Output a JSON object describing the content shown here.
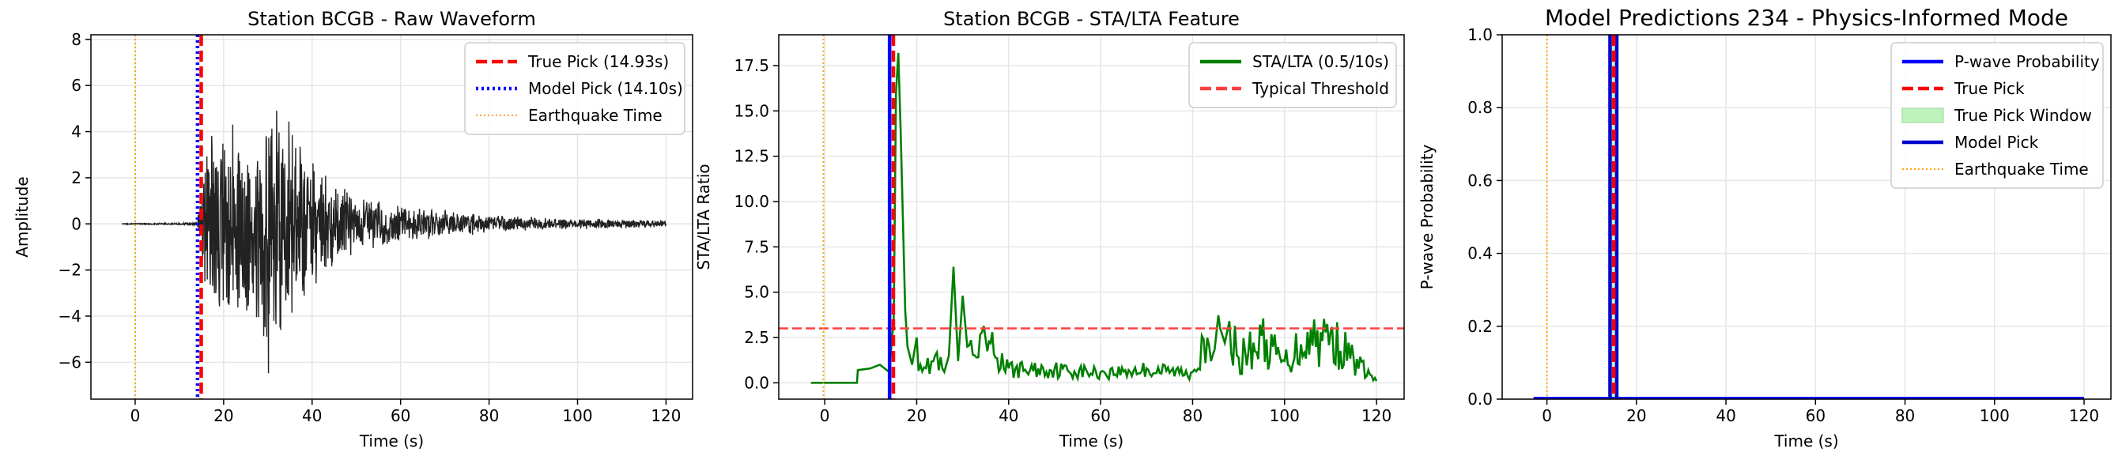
{
  "chart_data": [
    {
      "type": "line",
      "title": "Station BCGB - Raw Waveform",
      "xlabel": "Time (s)",
      "ylabel": "Amplitude",
      "xlim": [
        -10,
        126
      ],
      "ylim": [
        -7.6,
        8.2
      ],
      "xticks": [
        0,
        20,
        40,
        60,
        80,
        100,
        120
      ],
      "xtick_labels": [
        "0",
        "20",
        "40",
        "60",
        "80",
        "100",
        "120"
      ],
      "yticks": [
        -6,
        -4,
        -2,
        0,
        2,
        4,
        6,
        8
      ],
      "ytick_labels": [
        "−6",
        "−4",
        "−2",
        "0",
        "2",
        "4",
        "6",
        "8"
      ],
      "grid": true,
      "legend_position": "top-right",
      "legend": [
        {
          "label": "True Pick (14.93s)",
          "color": "#ff0000",
          "style": "dashed"
        },
        {
          "label": "Model Pick (14.10s)",
          "color": "#0000ff",
          "style": "dotted"
        },
        {
          "label": "Earthquake Time",
          "color": "#ffa500",
          "style": "dotted-thin"
        }
      ],
      "vlines": [
        {
          "x": 14.93,
          "color": "#ff0000",
          "style": "dashed"
        },
        {
          "x": 14.1,
          "color": "#0000ff",
          "style": "dotted"
        },
        {
          "x": 0,
          "color": "#ffa500",
          "style": "dotted-thin"
        }
      ],
      "series": [
        {
          "color": "#222222",
          "kind": "waveform",
          "x": [
            -3,
            14,
            15,
            16,
            17,
            18,
            20,
            22,
            24,
            26,
            28,
            30,
            32,
            34,
            35,
            36,
            40,
            45,
            50,
            60,
            70,
            80,
            90,
            100,
            110,
            120
          ],
          "envelope": [
            0.02,
            0.05,
            1.5,
            3.5,
            4.5,
            4.2,
            4.0,
            5.2,
            5.0,
            4.8,
            5.5,
            7.3,
            6.0,
            5.0,
            6.8,
            3.8,
            3.0,
            2.0,
            1.3,
            0.9,
            0.6,
            0.45,
            0.3,
            0.25,
            0.2,
            0.15
          ],
          "end_x": 120
        }
      ]
    },
    {
      "type": "line",
      "title": "Station BCGB - STA/LTA Feature",
      "xlabel": "Time (s)",
      "ylabel": "STA/LTA Ratio",
      "xlim": [
        -10,
        126
      ],
      "ylim": [
        -0.9,
        19.2
      ],
      "xticks": [
        0,
        20,
        40,
        60,
        80,
        100,
        120
      ],
      "xtick_labels": [
        "0",
        "20",
        "40",
        "60",
        "80",
        "100",
        "120"
      ],
      "yticks": [
        0,
        2.5,
        5,
        7.5,
        10,
        12.5,
        15,
        17.5
      ],
      "ytick_labels": [
        "0.0",
        "2.5",
        "5.0",
        "7.5",
        "10.0",
        "12.5",
        "15.0",
        "17.5"
      ],
      "grid": true,
      "legend_position": "top-right",
      "legend": [
        {
          "label": "STA/LTA (0.5/10s)",
          "color": "#008000",
          "style": "solid"
        },
        {
          "label": "Typical Threshold",
          "color": "#ff4040",
          "style": "dashed"
        }
      ],
      "hlines": [
        {
          "y": 3.0,
          "color": "#ff4040",
          "style": "dashed"
        }
      ],
      "vlines": [
        {
          "x": -0.3,
          "color": "#ffa500",
          "style": "dotted-thin"
        },
        {
          "x": 14.1,
          "color": "#0000ff",
          "style": "solid"
        },
        {
          "x": 14.93,
          "color": "#ff0000",
          "style": "dashed"
        }
      ],
      "series": [
        {
          "color": "#008000",
          "kind": "stalta",
          "x": [
            -3,
            7,
            7.2,
            10,
            11,
            12,
            13,
            14,
            15,
            15.5,
            16,
            16.5,
            17,
            17.5,
            18,
            19,
            20,
            22,
            24,
            26,
            27,
            28,
            29,
            30,
            31,
            33,
            35,
            40,
            50,
            60,
            70,
            80,
            82,
            84,
            86,
            87,
            88,
            90,
            95,
            100,
            105,
            110,
            115,
            120
          ],
          "y": [
            0,
            0,
            0.7,
            0.8,
            0.9,
            1.0,
            0.8,
            0.6,
            3.5,
            16.0,
            18.2,
            14.0,
            9.0,
            4.0,
            2.0,
            1.0,
            2.5,
            0.8,
            1.5,
            0.6,
            1.5,
            6.4,
            1.2,
            4.8,
            2.0,
            1.4,
            2.4,
            0.8,
            0.8,
            0.6,
            0.8,
            0.6,
            2.6,
            1.2,
            3.0,
            2.2,
            3.4,
            1.4,
            2.6,
            1.2,
            2.8,
            2.8,
            1.4,
            0.1
          ]
        }
      ]
    },
    {
      "type": "line",
      "title": "Model Predictions 234 - Physics-Informed Mode",
      "xlabel": "Time (s)",
      "ylabel": "P-wave Probability",
      "xlim": [
        -10,
        126
      ],
      "ylim": [
        0,
        1.0
      ],
      "xticks": [
        0,
        20,
        40,
        60,
        80,
        100,
        120
      ],
      "xtick_labels": [
        "0",
        "20",
        "40",
        "60",
        "80",
        "100",
        "120"
      ],
      "yticks": [
        0,
        0.2,
        0.4,
        0.6,
        0.8,
        1.0
      ],
      "ytick_labels": [
        "0.0",
        "0.2",
        "0.4",
        "0.6",
        "0.8",
        "1.0"
      ],
      "grid": true,
      "legend_position": "top-right",
      "legend": [
        {
          "label": "P-wave Probability",
          "color": "#0000ff",
          "style": "solid"
        },
        {
          "label": "True Pick",
          "color": "#ff0000",
          "style": "dashed"
        },
        {
          "label": "True Pick Window",
          "color": "#90ee90",
          "style": "patch"
        },
        {
          "label": "Model Pick",
          "color": "#0000cc",
          "style": "solid"
        },
        {
          "label": "Earthquake Time",
          "color": "#ffa500",
          "style": "dotted-thin"
        }
      ],
      "spans": [
        {
          "x0": 13.93,
          "x1": 15.93,
          "color": "#90ee90"
        }
      ],
      "vlines": [
        {
          "x": 0,
          "color": "#ffa500",
          "style": "dotted-thin"
        },
        {
          "x": 14.1,
          "color": "#0000cc",
          "style": "solid"
        },
        {
          "x": 15.6,
          "color": "#0000cc",
          "style": "solid"
        },
        {
          "x": 14.93,
          "color": "#ff0000",
          "style": "dashed"
        }
      ],
      "series": [
        {
          "color": "#0000ff",
          "kind": "probability",
          "x": [
            -3,
            120
          ],
          "y": [
            0.003,
            0.003
          ]
        }
      ]
    }
  ]
}
